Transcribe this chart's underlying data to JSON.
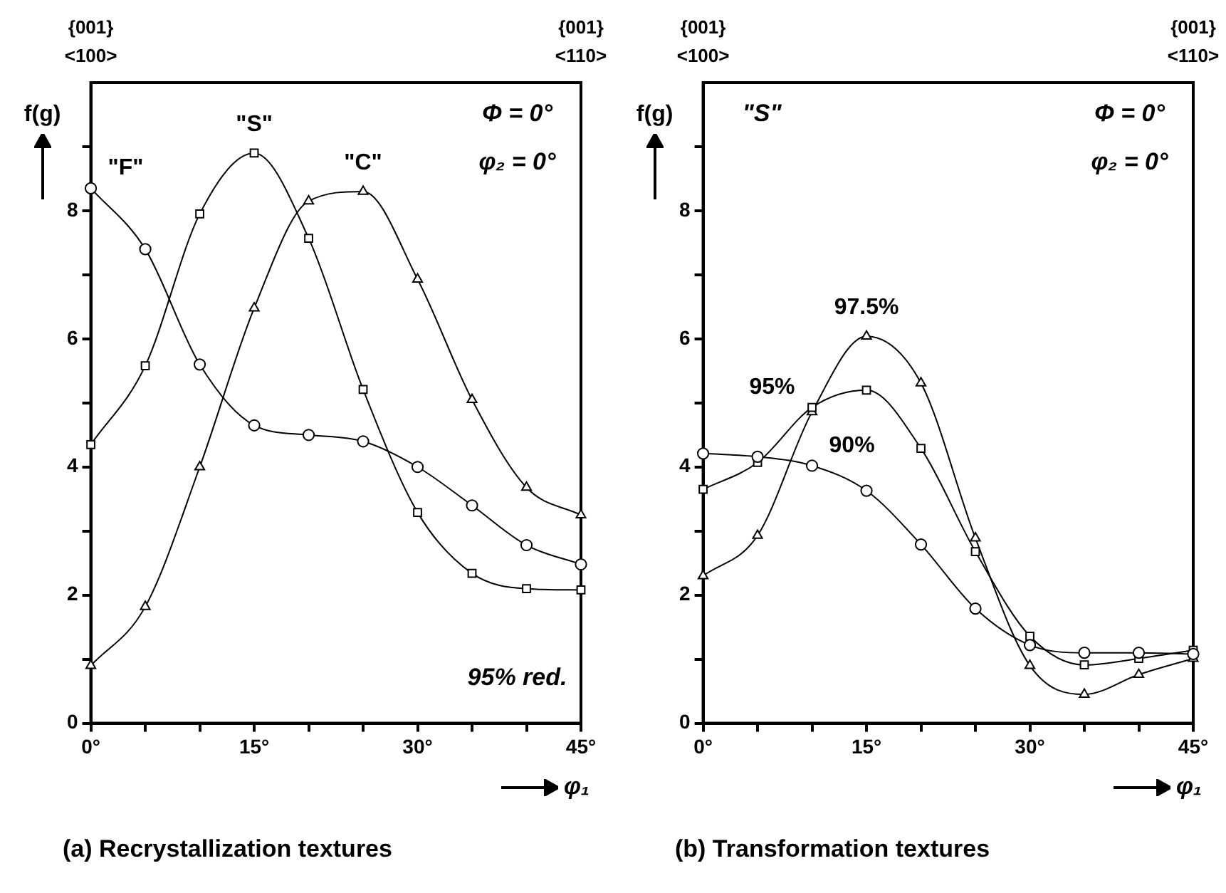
{
  "chart_data": [
    {
      "type": "line",
      "title": "(a) Recrystallization textures",
      "xlabel": "φ₁",
      "ylabel": "f(g)",
      "x": [
        0,
        5,
        10,
        15,
        20,
        25,
        30,
        35,
        40,
        45
      ],
      "series": [
        {
          "name": "\"F\"",
          "color": "#000000",
          "marker": "circle",
          "values": [
            8.35,
            7.4,
            5.6,
            4.65,
            4.5,
            4.4,
            4.0,
            3.4,
            2.78,
            2.48
          ]
        },
        {
          "name": "\"S\"",
          "color": "#000000",
          "marker": "square",
          "values": [
            4.35,
            5.58,
            7.95,
            8.9,
            7.57,
            5.21,
            3.29,
            2.34,
            2.1,
            2.08
          ]
        },
        {
          "name": "\"C\"",
          "color": "#000000",
          "marker": "triangle",
          "values": [
            0.9,
            1.82,
            4.0,
            6.48,
            8.15,
            8.3,
            6.93,
            5.05,
            3.68,
            3.25
          ]
        }
      ],
      "xlim": [
        0,
        45
      ],
      "xticks": [
        {
          "value": 0,
          "label": "0°"
        },
        {
          "value": 5,
          "label": null
        },
        {
          "value": 10,
          "label": null
        },
        {
          "value": 15,
          "label": "15°"
        },
        {
          "value": 20,
          "label": null
        },
        {
          "value": 25,
          "label": null
        },
        {
          "value": 30,
          "label": "30°"
        },
        {
          "value": 35,
          "label": null
        },
        {
          "value": 40,
          "label": null
        },
        {
          "value": 45,
          "label": "45°"
        }
      ],
      "ylim": [
        0,
        10
      ],
      "yticks": [
        0,
        {
          "value": 1,
          "label": null
        },
        2,
        {
          "value": 3,
          "label": null
        },
        4,
        {
          "value": 5,
          "label": null
        },
        6,
        {
          "value": 7,
          "label": null
        },
        8,
        {
          "value": 9,
          "label": null
        }
      ],
      "grid": false,
      "legend": false,
      "line_style": "solid",
      "annotations": [
        "{001} <100>",
        "{001} <110>",
        "Φ = 0°",
        "φ₂ = 0°",
        "95% red."
      ]
    },
    {
      "type": "line",
      "title": "(b) Transformation textures",
      "xlabel": "φ₁",
      "ylabel": "f(g)",
      "x": [
        0,
        5,
        10,
        15,
        20,
        25,
        30,
        35,
        40,
        45
      ],
      "series": [
        {
          "name": "90%",
          "color": "#000000",
          "marker": "circle",
          "values": [
            4.21,
            4.16,
            4.02,
            3.63,
            2.79,
            1.79,
            1.22,
            1.1,
            1.1,
            1.08
          ]
        },
        {
          "name": "95%",
          "color": "#000000",
          "marker": "square",
          "values": [
            3.65,
            4.07,
            4.93,
            5.2,
            4.29,
            2.68,
            1.36,
            0.91,
            1.01,
            1.14
          ]
        },
        {
          "name": "97.5%",
          "color": "#000000",
          "marker": "triangle",
          "values": [
            2.3,
            2.93,
            4.86,
            6.04,
            5.31,
            2.89,
            0.9,
            0.45,
            0.76,
            1.01
          ]
        }
      ],
      "xlim": [
        0,
        45
      ],
      "xticks": [
        {
          "value": 0,
          "label": "0°"
        },
        {
          "value": 5,
          "label": null
        },
        {
          "value": 10,
          "label": null
        },
        {
          "value": 15,
          "label": "15°"
        },
        {
          "value": 20,
          "label": null
        },
        {
          "value": 25,
          "label": null
        },
        {
          "value": 30,
          "label": "30°"
        },
        {
          "value": 35,
          "label": null
        },
        {
          "value": 40,
          "label": null
        },
        {
          "value": 45,
          "label": "45°"
        }
      ],
      "ylim": [
        0,
        10
      ],
      "yticks": [
        0,
        {
          "value": 1,
          "label": null
        },
        2,
        {
          "value": 3,
          "label": null
        },
        4,
        {
          "value": 5,
          "label": null
        },
        6,
        {
          "value": 7,
          "label": null
        },
        8,
        {
          "value": 9,
          "label": null
        }
      ],
      "grid": false,
      "legend": false,
      "line_style": "solid",
      "annotations": [
        "{001} <100>",
        "{001} <110>",
        "\"S\"",
        "Φ = 0°",
        "φ₂ = 0°"
      ]
    }
  ]
}
